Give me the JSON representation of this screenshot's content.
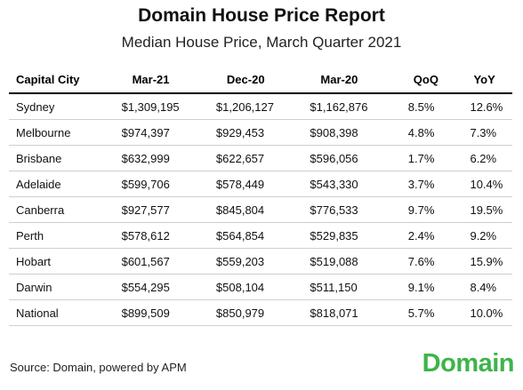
{
  "report": {
    "title": "Domain House Price Report",
    "subtitle": "Median House Price, March Quarter 2021"
  },
  "table": {
    "headers": [
      "Capital City",
      "Mar-21",
      "Dec-20",
      "Mar-20",
      "QoQ",
      "YoY"
    ],
    "rows": [
      [
        "Sydney",
        "$1,309,195",
        "$1,206,127",
        "$1,162,876",
        "8.5%",
        "12.6%"
      ],
      [
        "Melbourne",
        "$974,397",
        "$929,453",
        "$908,398",
        "4.8%",
        "7.3%"
      ],
      [
        "Brisbane",
        "$632,999",
        "$622,657",
        "$596,056",
        "1.7%",
        "6.2%"
      ],
      [
        "Adelaide",
        "$599,706",
        "$578,449",
        "$543,330",
        "3.7%",
        "10.4%"
      ],
      [
        "Canberra",
        "$927,577",
        "$845,804",
        "$776,533",
        "9.7%",
        "19.5%"
      ],
      [
        "Perth",
        "$578,612",
        "$564,854",
        "$529,835",
        "2.4%",
        "9.2%"
      ],
      [
        "Hobart",
        "$601,567",
        "$559,203",
        "$519,088",
        "7.6%",
        "15.9%"
      ],
      [
        "Darwin",
        "$554,295",
        "$508,104",
        "$511,150",
        "9.1%",
        "8.4%"
      ],
      [
        "National",
        "$899,509",
        "$850,979",
        "$818,071",
        "5.7%",
        "10.0%"
      ]
    ]
  },
  "footer": {
    "source": "Source: Domain, powered by APM",
    "logo_text": "Domain",
    "logo_color": "#3db44a"
  }
}
